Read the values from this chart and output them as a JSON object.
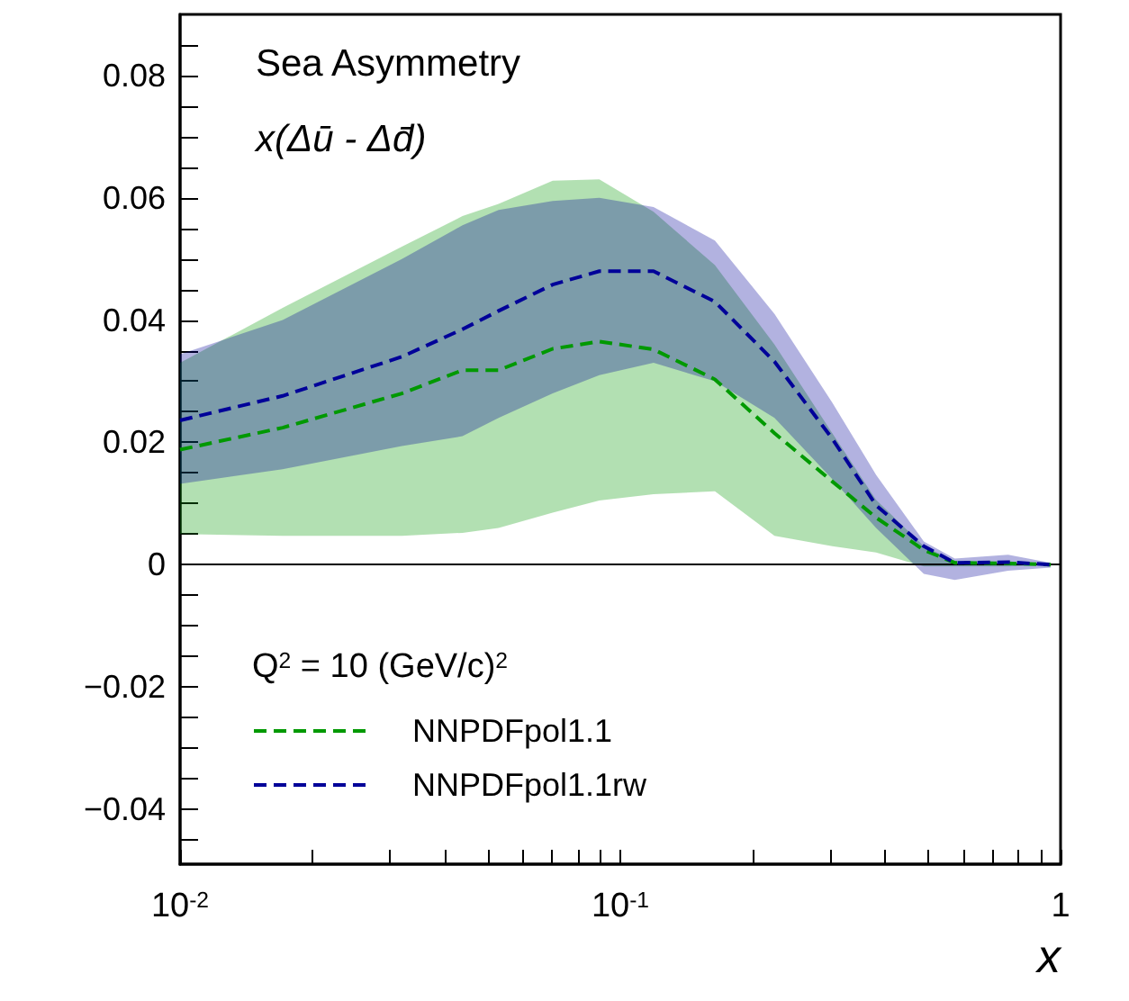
{
  "chart_data": {
    "type": "line",
    "title": "Sea Asymmetry",
    "subtitle": "x(Δū - Δd̄)",
    "xlabel": "x",
    "legend_title": "Q$^{2}$ = 10 (GeV/c)$^{2}$",
    "x": [
      0.01,
      0.0171,
      0.0319,
      0.0438,
      0.0529,
      0.0702,
      0.0896,
      0.119,
      0.164,
      0.224,
      0.303,
      0.381,
      0.489,
      0.575,
      0.76,
      0.95
    ],
    "series": [
      {
        "name": "NNPDFpol1.1",
        "color": "#009900",
        "line_style": "dashed",
        "values": [
          0.0188,
          0.0224,
          0.028,
          0.0318,
          0.0318,
          0.0353,
          0.0365,
          0.0352,
          0.0303,
          0.0215,
          0.0136,
          0.0077,
          0.0024,
          0.0003,
          0.0002,
          0
        ],
        "lower": [
          0.005,
          0.0047,
          0.0047,
          0.0052,
          0.006,
          0.0085,
          0.0105,
          0.0115,
          0.012,
          0.0047,
          0.003,
          0.002,
          -0.0003,
          -0.0003,
          -0.0003,
          0
        ],
        "upper": [
          0.033,
          0.042,
          0.052,
          0.057,
          0.059,
          0.0628,
          0.063,
          0.0577,
          0.049,
          0.036,
          0.0215,
          0.0106,
          0.003,
          0.0006,
          0.0003,
          0.0001
        ]
      },
      {
        "name": "NNPDFpol1.1rw",
        "color": "#000099",
        "line_style": "dashed",
        "values": [
          0.0236,
          0.0276,
          0.034,
          0.0385,
          0.0415,
          0.0458,
          0.048,
          0.048,
          0.043,
          0.0332,
          0.0206,
          0.0097,
          0.003,
          0.0003,
          0.0004,
          0
        ],
        "lower": [
          0.0132,
          0.0156,
          0.0194,
          0.021,
          0.024,
          0.028,
          0.031,
          0.033,
          0.03,
          0.024,
          0.014,
          0.006,
          -0.0015,
          -0.0025,
          -0.001,
          -0.0005
        ],
        "upper": [
          0.0344,
          0.04,
          0.05,
          0.0555,
          0.058,
          0.0595,
          0.06,
          0.0585,
          0.053,
          0.041,
          0.0265,
          0.0147,
          0.0038,
          0.001,
          0.0016,
          0.0003
        ]
      }
    ],
    "log": "x",
    "xlim": [
      0.01,
      1
    ],
    "ylim": [
      -0.049,
      0.09
    ],
    "xticks": [
      {
        "value": 0.01,
        "label": "10$^{-2}$"
      },
      {
        "value": 0.02,
        "label": null
      },
      {
        "value": 0.03,
        "label": null
      },
      {
        "value": 0.04,
        "label": null
      },
      {
        "value": 0.05,
        "label": null
      },
      {
        "value": 0.06,
        "label": null
      },
      {
        "value": 0.07,
        "label": null
      },
      {
        "value": 0.08,
        "label": null
      },
      {
        "value": 0.09,
        "label": null
      },
      {
        "value": 0.1,
        "label": "10$^{-1}$"
      },
      {
        "value": 0.2,
        "label": null
      },
      {
        "value": 0.3,
        "label": null
      },
      {
        "value": 0.4,
        "label": null
      },
      {
        "value": 0.5,
        "label": null
      },
      {
        "value": 0.6,
        "label": null
      },
      {
        "value": 0.7,
        "label": null
      },
      {
        "value": 0.8,
        "label": null
      },
      {
        "value": 0.9,
        "label": null
      },
      1
    ],
    "yticks": [
      {
        "value": -0.045,
        "label": null
      },
      {
        "value": -0.04,
        "label": "−0.04"
      },
      {
        "value": -0.035,
        "label": null
      },
      {
        "value": -0.03,
        "label": null
      },
      {
        "value": -0.025,
        "label": null
      },
      {
        "value": -0.02,
        "label": "−0.02"
      },
      {
        "value": -0.015,
        "label": null
      },
      {
        "value": -0.01,
        "label": null
      },
      {
        "value": -0.005,
        "label": null
      },
      0,
      {
        "value": 0.005,
        "label": null
      },
      {
        "value": 0.01,
        "label": null
      },
      {
        "value": 0.015,
        "label": null
      },
      0.02,
      {
        "value": 0.025,
        "label": null
      },
      {
        "value": 0.03,
        "label": null
      },
      {
        "value": 0.035,
        "label": null
      },
      0.04,
      {
        "value": 0.045,
        "label": null
      },
      {
        "value": 0.05,
        "label": null
      },
      {
        "value": 0.055,
        "label": null
      },
      0.06,
      {
        "value": 0.065,
        "label": null
      },
      {
        "value": 0.07,
        "label": null
      },
      {
        "value": 0.075,
        "label": null
      },
      0.08,
      {
        "value": 0.085,
        "label": null
      }
    ],
    "ref_lines": [
      {
        "axis": "y",
        "value": 0,
        "color": "#000000"
      }
    ],
    "grid": false,
    "legend": "bottom left",
    "marker": "none"
  }
}
